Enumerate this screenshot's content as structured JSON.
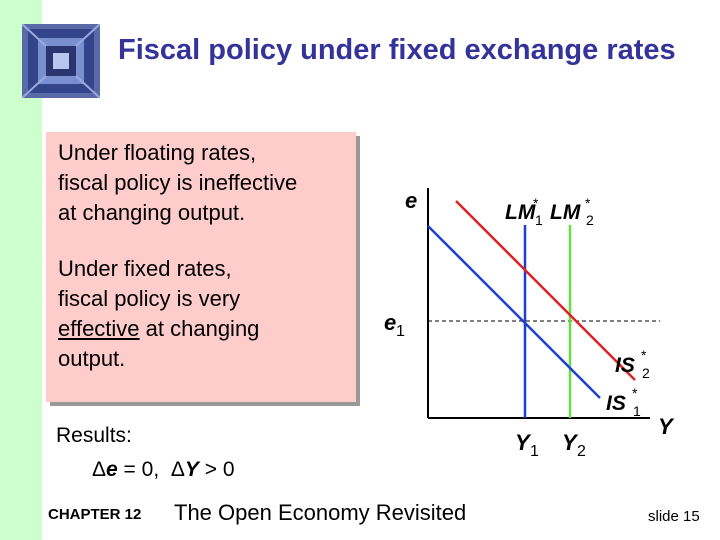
{
  "title": "Fiscal policy under fixed exchange rates",
  "box": {
    "p1_line1": "Under floating rates,",
    "p1_line2": "fiscal policy is ineffective",
    "p1_line3": "at changing output.",
    "p2_line1": "Under fixed rates,",
    "p2_line2": "fiscal policy is very",
    "p2_line3_underlined": "effective",
    "p2_line3_rest": " at changing",
    "p2_line4": "output."
  },
  "results": {
    "label": "Results:",
    "de": "e",
    "de_rest": " = 0,",
    "dy": "Y",
    "dy_rest": " > 0",
    "delta": "Δ"
  },
  "diagram": {
    "y_axis_label": "e",
    "x_axis_label": "Y",
    "e1_label": "e",
    "e1_sub": "1",
    "lm1_label": "LM",
    "lm1_sub": "1",
    "lm2_label": "LM",
    "lm2_sub": "2",
    "star": "*",
    "is2_label": "IS",
    "is2_sub": "2",
    "is1_label": "IS",
    "is1_sub": "1",
    "y1_label": "Y",
    "y1_sub": "1",
    "y2_label": "Y",
    "y2_sub": "2",
    "colors": {
      "lm1": "#1f3fcc",
      "lm2": "#66dd44",
      "is1": "#1f3fcc",
      "is2": "#dd2222",
      "axis": "#000000"
    }
  },
  "footer": {
    "chapter": "CHAPTER 12",
    "course_title": "The Open Economy Revisited",
    "slide": "slide 15"
  }
}
